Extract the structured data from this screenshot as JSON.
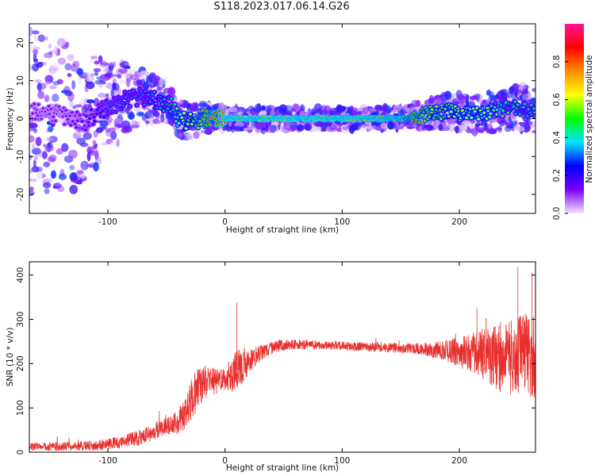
{
  "figure": {
    "title": "S118.2023.017.06.14.G26"
  },
  "chart_data": [
    {
      "type": "heatmap",
      "xlabel": "Height of straight line (km)",
      "ylabel": "Frequency (Hz)",
      "xlim": [
        -167,
        265
      ],
      "ylim": [
        -25,
        25
      ],
      "xticks": [
        -100,
        0,
        100,
        200
      ],
      "yticks": [
        -20,
        -10,
        0,
        10,
        20
      ],
      "grid": false,
      "colorbar": {
        "label": "Normalized spectral amplitude",
        "range": [
          0.0,
          1.0
        ],
        "ticks": [
          "0.0",
          "0.2",
          "0.4",
          "0.6",
          "0.8"
        ],
        "colormap": [
          "#f2e6ff",
          "#7a00ff",
          "#0000ff",
          "#00e5ff",
          "#00ff00",
          "#ffff00",
          "#ff8c00",
          "#ff0000",
          "#ff1493"
        ]
      },
      "ridge": {
        "x_km": [
          -165,
          -140,
          -120,
          -100,
          -85,
          -70,
          -60,
          -50,
          -45,
          -40,
          -30,
          -20,
          -10,
          0,
          50,
          100,
          150,
          170,
          190,
          210,
          230,
          250,
          265
        ],
        "freq_hz": [
          2,
          1,
          -1,
          3,
          5,
          6,
          5,
          4,
          3,
          0,
          -1,
          0,
          0,
          0,
          0,
          0,
          0,
          1,
          2,
          1,
          2,
          3,
          2
        ],
        "peak_amplitude": [
          0.15,
          0.15,
          0.2,
          0.3,
          0.35,
          0.35,
          0.4,
          0.45,
          0.5,
          0.6,
          0.7,
          0.8,
          0.9,
          1.0,
          1.0,
          1.0,
          0.95,
          0.8,
          0.7,
          0.65,
          0.6,
          0.5,
          0.5
        ]
      },
      "scatter_spread_hz": {
        "x_km": [
          -165,
          -120,
          -80,
          -45,
          0,
          150,
          200,
          265
        ],
        "spread": [
          22,
          18,
          8,
          5,
          3,
          3,
          5,
          6
        ]
      }
    },
    {
      "type": "line",
      "xlabel": "Height of straight line (km)",
      "ylabel": "SNR (10 * v/v)",
      "xlim": [
        -167,
        265
      ],
      "ylim": [
        0,
        430
      ],
      "xticks": [
        -100,
        0,
        100,
        200
      ],
      "yticks": [
        0,
        100,
        200,
        300,
        400
      ],
      "grid": false,
      "series": [
        {
          "color": "#e8312f",
          "x": [
            -167,
            -140,
            -110,
            -90,
            -70,
            -55,
            -45,
            -35,
            -28,
            -22,
            -15,
            -5,
            0,
            5,
            10,
            20,
            30,
            45,
            60,
            80,
            100,
            120,
            140,
            160,
            175,
            185,
            195,
            205,
            215,
            225,
            235,
            245,
            255,
            265
          ],
          "y": [
            12,
            13,
            15,
            22,
            35,
            55,
            60,
            80,
            120,
            150,
            160,
            160,
            165,
            175,
            185,
            205,
            225,
            240,
            243,
            242,
            240,
            238,
            236,
            235,
            232,
            230,
            228,
            225,
            225,
            220,
            215,
            215,
            220,
            220
          ],
          "spread": [
            8,
            10,
            12,
            15,
            18,
            20,
            22,
            35,
            50,
            45,
            35,
            28,
            25,
            40,
            45,
            30,
            18,
            14,
            12,
            10,
            10,
            10,
            11,
            12,
            16,
            22,
            30,
            40,
            50,
            65,
            80,
            90,
            95,
            100
          ]
        }
      ],
      "peaks": [
        {
          "x": 10,
          "y": 338
        },
        {
          "x": 215,
          "y": 325
        },
        {
          "x": 250,
          "y": 418
        },
        {
          "x": 262,
          "y": 405
        }
      ]
    }
  ]
}
